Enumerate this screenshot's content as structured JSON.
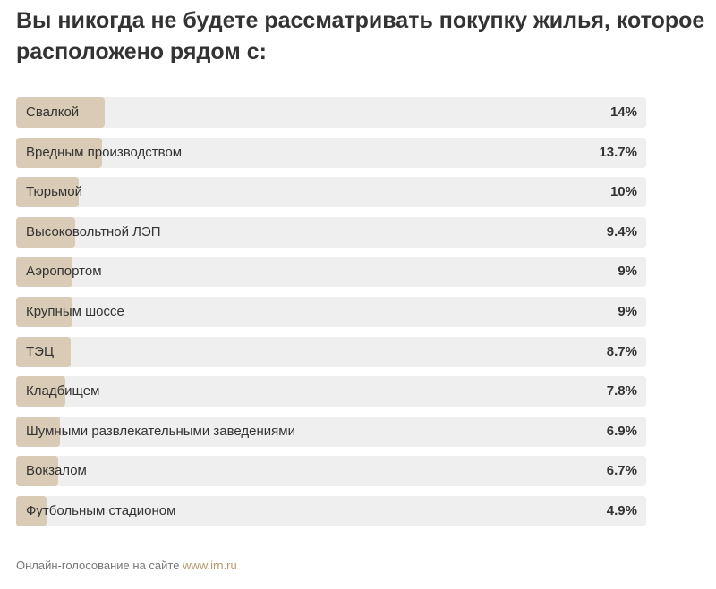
{
  "title": "Вы никогда не будете рассматривать покупку жилья, которое расположено рядом с:",
  "chart_data": {
    "type": "bar",
    "orientation": "horizontal",
    "title": "Вы никогда не будете рассматривать покупку жилья, которое расположено рядом с:",
    "xlim": [
      0,
      100
    ],
    "categories": [
      "Свалкой",
      "Вредным производством",
      "Тюрьмой",
      "Высоковольтной ЛЭП",
      "Аэропортом",
      "Крупным шоссе",
      "ТЭЦ",
      "Кладбищем",
      "Шумными развлекательными заведениями",
      "Вокзалом",
      "Футбольным стадионом"
    ],
    "values": [
      14,
      13.7,
      10,
      9.4,
      9,
      9,
      8.7,
      7.8,
      6.9,
      6.7,
      4.9
    ],
    "value_labels": [
      "14%",
      "13.7%",
      "10%",
      "9.4%",
      "9%",
      "9%",
      "8.7%",
      "7.8%",
      "6.9%",
      "6.7%",
      "4.9%"
    ]
  },
  "colors": {
    "fill": "#d9cbb5",
    "track": "#efefef",
    "link": "#b39a6a"
  },
  "source": {
    "text": "Онлайн-голосование на сайте ",
    "link": "www.irn.ru"
  }
}
